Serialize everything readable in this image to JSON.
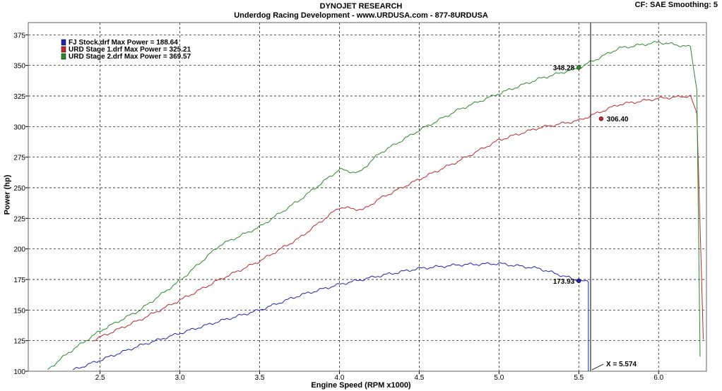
{
  "header": {
    "title": "DYNOJET RESEARCH",
    "subtitle": "Underdog Racing Development - www.URDUSA.com - 877-8URDUSA",
    "corner": "CF: SAE  Smoothing: 5"
  },
  "chart_data": {
    "type": "line",
    "title": "DYNOJET RESEARCH",
    "subtitle": "Underdog Racing Development - www.URDUSA.com - 877-8URDUSA",
    "xlabel": "Engine Speed (RPM x1000)",
    "ylabel": "Power (hp)",
    "xlim": [
      2.05,
      6.3
    ],
    "ylim": [
      100,
      385
    ],
    "xticks": [
      2.5,
      3.0,
      3.5,
      4.0,
      4.5,
      5.0,
      5.5,
      6.0
    ],
    "yticks": [
      100,
      125,
      150,
      175,
      200,
      225,
      250,
      275,
      300,
      325,
      350,
      375
    ],
    "xtick_labels": [
      "2.5",
      "3.0",
      "3.5",
      "4.0",
      "4.5",
      "5.0",
      "5.5",
      "6.0"
    ],
    "ytick_labels": [
      "100",
      "125",
      "150",
      "175",
      "200",
      "225",
      "250",
      "275",
      "300",
      "325",
      "350",
      "375"
    ],
    "grid": true,
    "legend_position": "top-left",
    "cursor": {
      "x": 5.574,
      "label": "X = 5.574"
    },
    "series": [
      {
        "name": "FJ Stock.drf Max Power = 188.64",
        "color": "#2222aa",
        "x": [
          2.33,
          2.5,
          2.75,
          3.0,
          3.25,
          3.5,
          3.75,
          4.0,
          4.25,
          4.5,
          4.75,
          5.0,
          5.25,
          5.5,
          5.56,
          5.56
        ],
        "y": [
          101,
          109,
          121,
          131,
          141,
          150,
          162,
          171,
          178,
          184,
          187,
          188,
          184,
          174,
          173,
          100
        ],
        "marker": {
          "x": 5.5,
          "y": 173.93,
          "label": "173.93"
        }
      },
      {
        "name": "URD Stage 1.drf Max Power = 325.21",
        "color": "#bb2a2a",
        "x": [
          2.45,
          2.75,
          3.0,
          3.25,
          3.5,
          3.75,
          4.0,
          4.15,
          4.25,
          4.5,
          4.75,
          5.0,
          5.25,
          5.5,
          5.75,
          6.0,
          6.2,
          6.24,
          6.28
        ],
        "y": [
          125,
          142,
          158,
          175,
          190,
          209,
          234,
          232,
          241,
          257,
          272,
          289,
          299,
          305,
          318,
          323,
          325,
          310,
          127
        ],
        "marker": {
          "x": 5.64,
          "y": 306.4,
          "label": "306.40"
        }
      },
      {
        "name": "URD Stage 2.drf Max Power = 369.57",
        "color": "#2a8a2a",
        "x": [
          2.17,
          2.3,
          2.5,
          2.75,
          3.0,
          3.25,
          3.5,
          3.75,
          4.0,
          4.12,
          4.25,
          4.5,
          4.75,
          5.0,
          5.25,
          5.5,
          5.75,
          6.0,
          6.2,
          6.24,
          6.26
        ],
        "y": [
          101,
          115,
          133,
          150,
          174,
          203,
          218,
          240,
          265,
          262,
          278,
          297,
          314,
          327,
          339,
          348,
          364,
          369,
          365,
          330,
          112
        ],
        "marker": {
          "x": 5.5,
          "y": 348.28,
          "label": "348.28"
        }
      }
    ]
  }
}
